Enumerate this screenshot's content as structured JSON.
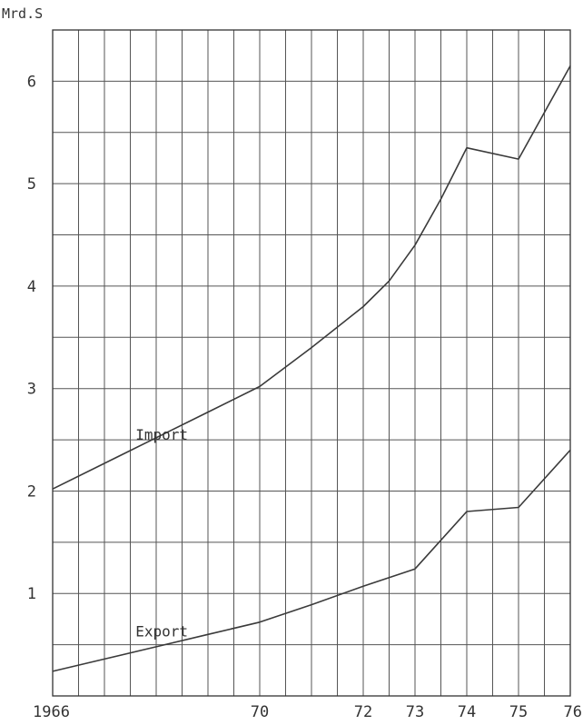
{
  "chart_data": {
    "type": "line",
    "ylabel": "Mrd.S",
    "x_tick_labels": [
      {
        "x": 1966,
        "label": "1966"
      },
      {
        "x": 1970,
        "label": "70"
      },
      {
        "x": 1972,
        "label": "72"
      },
      {
        "x": 1973,
        "label": "73"
      },
      {
        "x": 1974,
        "label": "74"
      },
      {
        "x": 1975,
        "label": "75"
      },
      {
        "x": 1976,
        "label": "76"
      }
    ],
    "y_tick_labels": [
      {
        "y": 1,
        "label": "1"
      },
      {
        "y": 2,
        "label": "2"
      },
      {
        "y": 3,
        "label": "3"
      },
      {
        "y": 4,
        "label": "4"
      },
      {
        "y": 5,
        "label": "5"
      },
      {
        "y": 6,
        "label": "6"
      }
    ],
    "xlim": [
      1966,
      1976
    ],
    "ylim": [
      0,
      6.5
    ],
    "x_grid_step": 0.5,
    "y_grid_step": 0.5,
    "grid": true,
    "series": [
      {
        "name": "Import",
        "label_at": {
          "x": 1967.6,
          "y": 2.5
        },
        "x": [
          1966,
          1967,
          1968,
          1969,
          1970,
          1971,
          1972,
          1972.5,
          1973,
          1973.5,
          1974,
          1975,
          1976
        ],
        "y": [
          2.02,
          2.27,
          2.52,
          2.77,
          3.02,
          3.4,
          3.8,
          4.05,
          4.4,
          4.85,
          5.35,
          5.24,
          6.15
        ]
      },
      {
        "name": "Export",
        "label_at": {
          "x": 1967.6,
          "y": 0.58
        },
        "x": [
          1966,
          1967,
          1968,
          1969,
          1970,
          1971,
          1972,
          1973,
          1974,
          1975,
          1976
        ],
        "y": [
          0.24,
          0.36,
          0.48,
          0.6,
          0.72,
          0.89,
          1.07,
          1.24,
          1.8,
          1.84,
          2.4
        ]
      }
    ],
    "colors": {
      "line": "#3a3a3a",
      "grid": "#555555",
      "frame": "#333333",
      "text": "#333333"
    }
  }
}
